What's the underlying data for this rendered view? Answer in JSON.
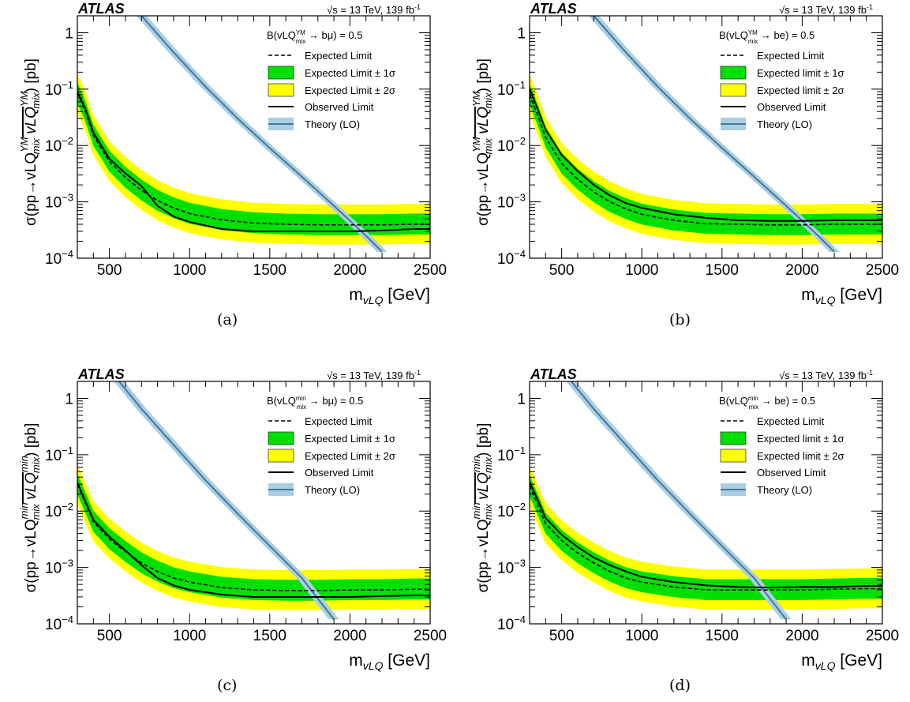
{
  "chart_data": [
    {
      "type": "line",
      "label": "(a)",
      "experiment": "ATLAS",
      "energy_label": "√s = 13 TeV, 139 fb",
      "energy_sup": "-1",
      "ylabel": {
        "pre": "σ(pp→vLQ",
        "lq_sup": "YM",
        "lq_sub": "mix",
        "bar_sup": "YM",
        "bar_sub": "mix",
        "post": ") [pb]"
      },
      "xlabel": {
        "main": "m",
        "sub": "vLQ",
        "unit": " [GeV]"
      },
      "xlim": [
        300,
        2500
      ],
      "ylim": [
        0.0001,
        2
      ],
      "xticks": [
        500,
        1000,
        1500,
        2000,
        2500
      ],
      "yticks": [
        {
          "value": 1,
          "base": "1",
          "exp": ""
        },
        {
          "value": 0.1,
          "base": "10",
          "exp": "−1"
        },
        {
          "value": 0.01,
          "base": "10",
          "exp": "−2"
        },
        {
          "value": 0.001,
          "base": "10",
          "exp": "−3"
        },
        {
          "value": 0.0001,
          "base": "10",
          "exp": "−4"
        }
      ],
      "legend": {
        "br_pre": "B(vLQ",
        "br_sup": "YM",
        "br_sub": "mix",
        "br_post": " → bμ) = 0.5",
        "expected": "Expected Limit",
        "band1": "Expected Limit ± 1σ",
        "band2": "Expected Limit ± 2σ",
        "observed": "Observed Limit",
        "theory": "Theory (LO)"
      },
      "x": [
        300,
        350,
        400,
        500,
        600,
        700,
        800,
        900,
        1000,
        1200,
        1400,
        1600,
        1800,
        2000,
        2200,
        2400,
        2500
      ],
      "expected": [
        0.085,
        0.04,
        0.015,
        0.0052,
        0.0027,
        0.0016,
        0.00105,
        0.00078,
        0.00062,
        0.00048,
        0.00042,
        0.0004,
        0.00039,
        0.00039,
        0.00039,
        0.0004,
        0.0004
      ],
      "observed": [
        0.09,
        0.045,
        0.017,
        0.0058,
        0.0032,
        0.0019,
        0.00085,
        0.00055,
        0.00044,
        0.00033,
        0.0003,
        0.0003,
        0.0003,
        0.0003,
        0.00031,
        0.00033,
        0.00033
      ],
      "theory_x": [
        700,
        900,
        1100,
        1300,
        1500,
        1700,
        1900,
        2100,
        2200
      ],
      "theory": [
        2.0,
        0.45,
        0.11,
        0.03,
        0.009,
        0.0028,
        0.00085,
        0.00025,
        0.00013
      ]
    },
    {
      "type": "line",
      "label": "(b)",
      "experiment": "ATLAS",
      "energy_label": "√s = 13 TeV, 139 fb",
      "energy_sup": "-1",
      "ylabel": {
        "pre": "σ(pp→vLQ",
        "lq_sup": "YM",
        "lq_sub": "mix",
        "bar_sup": "YM",
        "bar_sub": "mix",
        "post": ") [pb]"
      },
      "xlabel": {
        "main": "m",
        "sub": "vLQ",
        "unit": " [GeV]"
      },
      "xlim": [
        300,
        2500
      ],
      "ylim": [
        0.0001,
        2
      ],
      "xticks": [
        500,
        1000,
        1500,
        2000,
        2500
      ],
      "yticks": [
        {
          "value": 1,
          "base": "1",
          "exp": ""
        },
        {
          "value": 0.1,
          "base": "10",
          "exp": "−1"
        },
        {
          "value": 0.01,
          "base": "10",
          "exp": "−2"
        },
        {
          "value": 0.001,
          "base": "10",
          "exp": "−3"
        },
        {
          "value": 0.0001,
          "base": "10",
          "exp": "−4"
        }
      ],
      "legend": {
        "br_pre": "B(vLQ",
        "br_sup": "YM",
        "br_sub": "mix",
        "br_post": " → be) = 0.5",
        "expected": "Expected Limit",
        "band1": "Expected limit ± 1σ",
        "band2": "Expected limit ± 2σ",
        "observed": "Observed Limit",
        "theory": "Theory (LO)"
      },
      "x": [
        300,
        350,
        400,
        500,
        600,
        700,
        800,
        900,
        1000,
        1200,
        1400,
        1600,
        1800,
        2000,
        2200,
        2400,
        2500
      ],
      "expected": [
        0.08,
        0.035,
        0.014,
        0.0048,
        0.0025,
        0.0015,
        0.001,
        0.00075,
        0.0006,
        0.00047,
        0.00041,
        0.0004,
        0.00039,
        0.00039,
        0.0004,
        0.0004,
        0.0004
      ],
      "observed": [
        0.1,
        0.045,
        0.019,
        0.0068,
        0.0035,
        0.002,
        0.0013,
        0.00095,
        0.00078,
        0.0006,
        0.00052,
        0.00047,
        0.00046,
        0.00046,
        0.00047,
        0.00047,
        0.00047
      ],
      "theory_x": [
        700,
        900,
        1100,
        1300,
        1500,
        1700,
        1900,
        2100,
        2200
      ],
      "theory": [
        2.0,
        0.45,
        0.11,
        0.03,
        0.009,
        0.0028,
        0.00085,
        0.00025,
        0.00013
      ]
    },
    {
      "type": "line",
      "label": "(c)",
      "experiment": "ATLAS",
      "energy_label": "√s = 13 TeV, 139 fb",
      "energy_sup": "-1",
      "ylabel": {
        "pre": "σ(pp→vLQ",
        "lq_sup": "min",
        "lq_sub": "mix",
        "bar_sup": "min",
        "bar_sub": "mix",
        "post": ") [pb]"
      },
      "xlabel": {
        "main": "m",
        "sub": "vLQ",
        "unit": " [GeV]"
      },
      "xlim": [
        300,
        2500
      ],
      "ylim": [
        0.0001,
        2
      ],
      "xticks": [
        500,
        1000,
        1500,
        2000,
        2500
      ],
      "yticks": [
        {
          "value": 1,
          "base": "1",
          "exp": ""
        },
        {
          "value": 0.1,
          "base": "10",
          "exp": "−1"
        },
        {
          "value": 0.01,
          "base": "10",
          "exp": "−2"
        },
        {
          "value": 0.001,
          "base": "10",
          "exp": "−3"
        },
        {
          "value": 0.0001,
          "base": "10",
          "exp": "−4"
        }
      ],
      "legend": {
        "br_pre": "B(vLQ",
        "br_sup": "min",
        "br_sub": "mix",
        "br_post": " → bμ) = 0.5",
        "expected": "Expected Limit",
        "band1": "Expected Limit ± 1σ",
        "band2": "Expected Limit ± 2σ",
        "observed": "Observed Limit",
        "theory": "Theory (LO)"
      },
      "x": [
        300,
        350,
        400,
        500,
        600,
        700,
        800,
        900,
        1000,
        1200,
        1400,
        1600,
        1800,
        2000,
        2200,
        2400,
        2500
      ],
      "expected": [
        0.03,
        0.014,
        0.0065,
        0.0032,
        0.0019,
        0.0012,
        0.00085,
        0.00065,
        0.00055,
        0.00044,
        0.0004,
        0.00039,
        0.00039,
        0.0004,
        0.0004,
        0.00041,
        0.00041
      ],
      "observed": [
        0.032,
        0.015,
        0.007,
        0.0035,
        0.002,
        0.0011,
        0.00065,
        0.00048,
        0.0004,
        0.00033,
        0.0003,
        0.0003,
        0.0003,
        0.0003,
        0.00031,
        0.00032,
        0.00032
      ],
      "theory_x": [
        560,
        700,
        900,
        1100,
        1300,
        1500,
        1700,
        1900
      ],
      "theory": [
        2.0,
        0.65,
        0.15,
        0.035,
        0.009,
        0.0024,
        0.00065,
        0.00012
      ]
    },
    {
      "type": "line",
      "label": "(d)",
      "experiment": "ATLAS",
      "energy_label": "√s = 13 TeV, 139 fb",
      "energy_sup": "-1",
      "ylabel": {
        "pre": "σ(pp→vLQ",
        "lq_sup": "min",
        "lq_sub": "mix",
        "bar_sup": "min",
        "bar_sub": "mix",
        "post": ") [pb]"
      },
      "xlabel": {
        "main": "m",
        "sub": "vLQ",
        "unit": " [GeV]"
      },
      "xlim": [
        300,
        2500
      ],
      "ylim": [
        0.0001,
        2
      ],
      "xticks": [
        500,
        1000,
        1500,
        2000,
        2500
      ],
      "yticks": [
        {
          "value": 1,
          "base": "1",
          "exp": ""
        },
        {
          "value": 0.1,
          "base": "10",
          "exp": "−1"
        },
        {
          "value": 0.01,
          "base": "10",
          "exp": "−2"
        },
        {
          "value": 0.001,
          "base": "10",
          "exp": "−3"
        },
        {
          "value": 0.0001,
          "base": "10",
          "exp": "−4"
        }
      ],
      "legend": {
        "br_pre": "B(vLQ",
        "br_sup": "min",
        "br_sub": "mix",
        "br_post": " → be) = 0.5",
        "expected": "Expected Limit",
        "band1": "Expected limit ± 1σ",
        "band2": "Expected limit ± 2σ",
        "observed": "Observed Limit",
        "theory": "Theory (LO)"
      },
      "x": [
        300,
        350,
        400,
        500,
        600,
        700,
        800,
        900,
        1000,
        1200,
        1400,
        1600,
        1800,
        2000,
        2200,
        2400,
        2500
      ],
      "expected": [
        0.028,
        0.013,
        0.006,
        0.003,
        0.0018,
        0.0012,
        0.00085,
        0.00065,
        0.00055,
        0.00045,
        0.0004,
        0.0004,
        0.0004,
        0.0004,
        0.00041,
        0.00042,
        0.00042
      ],
      "observed": [
        0.033,
        0.016,
        0.0075,
        0.0038,
        0.0023,
        0.0015,
        0.0011,
        0.00085,
        0.00068,
        0.00055,
        0.00048,
        0.00045,
        0.00044,
        0.00045,
        0.00045,
        0.00047,
        0.00047
      ],
      "theory_x": [
        560,
        700,
        900,
        1100,
        1300,
        1500,
        1700,
        1900
      ],
      "theory": [
        2.0,
        0.65,
        0.15,
        0.035,
        0.009,
        0.0024,
        0.00065,
        0.00012
      ]
    }
  ],
  "style": {
    "band1_color": "#00e000",
    "band2_color": "#ffff00",
    "theory_color": "#4477a0",
    "theory_band_color": "#a9cfe0"
  }
}
